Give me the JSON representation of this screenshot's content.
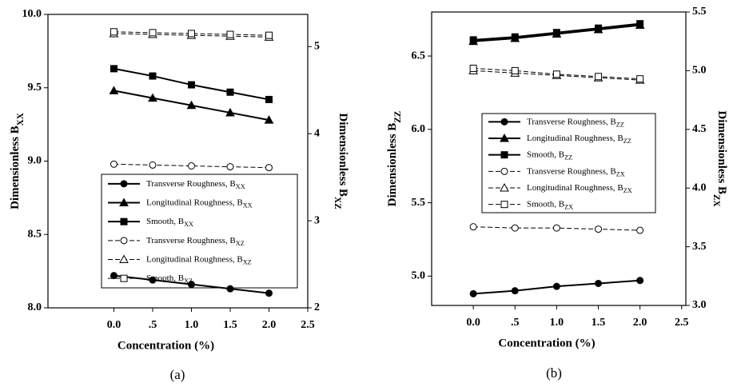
{
  "chart_data": [
    {
      "type": "line",
      "label": "(a)",
      "xlabel": "Concentration (%)",
      "ylabel": "Dimensionless BXX",
      "y2label": "Dimensionless BXZ",
      "x": [
        0,
        0.5,
        1,
        1.5,
        2
      ],
      "xlim": [
        -0.85,
        2.5
      ],
      "xticks": [
        {
          "value": 0,
          "label": "0.0"
        },
        {
          "value": 0.5,
          "label": ".5"
        },
        {
          "value": 1,
          "label": "1.0"
        },
        {
          "value": 1.5,
          "label": "1.5"
        },
        {
          "value": 2,
          "label": "2.0"
        },
        {
          "value": 2.5,
          "label": "2.5"
        }
      ],
      "ylim": [
        8,
        10
      ],
      "yticks": [
        {
          "value": 8,
          "label": "8.0"
        },
        {
          "value": 8.5,
          "label": "8.5"
        },
        {
          "value": 9,
          "label": "9.0"
        },
        {
          "value": 9.5,
          "label": "9.5"
        },
        {
          "value": 10,
          "label": "10.0"
        }
      ],
      "y2lim": [
        2,
        5.37
      ],
      "y2ticks": [
        2,
        3,
        4,
        5
      ],
      "series": [
        {
          "name": "Transverse Roughness, BXX",
          "color": "#000000",
          "marker": "circle",
          "filled": true,
          "dashed": false,
          "axis": "y",
          "values": [
            8.22,
            8.19,
            8.16,
            8.13,
            8.1
          ]
        },
        {
          "name": "Longitudinal Roughness, BXX",
          "color": "#000000",
          "marker": "triangle",
          "filled": true,
          "dashed": false,
          "axis": "y",
          "values": [
            9.48,
            9.43,
            9.38,
            9.33,
            9.28
          ]
        },
        {
          "name": "Smooth, BXX",
          "color": "#000000",
          "marker": "square",
          "filled": true,
          "dashed": false,
          "axis": "y",
          "values": [
            9.63,
            9.58,
            9.52,
            9.47,
            9.42
          ]
        },
        {
          "name": "Transverse Roughness, BXZ",
          "color": "#000000",
          "marker": "circle",
          "filled": false,
          "dashed": true,
          "axis": "y2",
          "values": [
            3.65,
            3.64,
            3.63,
            3.62,
            3.61
          ]
        },
        {
          "name": "Longitudinal Roughness, BXZ",
          "color": "#000000",
          "marker": "triangle",
          "filled": false,
          "dashed": true,
          "axis": "y2",
          "values": [
            5.15,
            5.14,
            5.13,
            5.12,
            5.11
          ]
        },
        {
          "name": "Smooth, BXZ",
          "color": "#000000",
          "marker": "square",
          "filled": false,
          "dashed": true,
          "axis": "y2",
          "values": [
            5.17,
            5.16,
            5.15,
            5.14,
            5.13
          ]
        }
      ]
    },
    {
      "type": "line",
      "label": "(b)",
      "xlabel": "Concentration (%)",
      "ylabel": "Dimensionless BZZ",
      "y2label": "Dimensionless BZX",
      "x": [
        0,
        0.5,
        1,
        1.5,
        2
      ],
      "xlim": [
        -0.5,
        2.55
      ],
      "xticks": [
        {
          "value": 0,
          "label": "0.0"
        },
        {
          "value": 0.5,
          "label": ".5"
        },
        {
          "value": 1,
          "label": "1.0"
        },
        {
          "value": 1.5,
          "label": "1.5"
        },
        {
          "value": 2,
          "label": "2.0"
        },
        {
          "value": 2.5,
          "label": "2.5"
        }
      ],
      "ylim": [
        4.8,
        6.8
      ],
      "yticks": [
        {
          "value": 5,
          "label": "5.0"
        },
        {
          "value": 5.5,
          "label": "5.5"
        },
        {
          "value": 6,
          "label": "6.0"
        },
        {
          "value": 6.5,
          "label": "6.5"
        }
      ],
      "y2lim": [
        3,
        5.5
      ],
      "y2ticks": [
        {
          "value": 3,
          "label": "3.0"
        },
        {
          "value": 3.5,
          "label": "3.5"
        },
        {
          "value": 4,
          "label": "4.0"
        },
        {
          "value": 4.5,
          "label": "4.5"
        },
        {
          "value": 5,
          "label": "5.0"
        },
        {
          "value": 5.5,
          "label": "5.5"
        }
      ],
      "series": [
        {
          "name": "Transverse Roughness, BZZ",
          "color": "#000000",
          "marker": "circle",
          "filled": true,
          "dashed": false,
          "axis": "y",
          "values": [
            4.88,
            4.9,
            4.93,
            4.95,
            4.97
          ]
        },
        {
          "name": "Longitudinal Roughness, BZZ",
          "color": "#000000",
          "marker": "triangle",
          "filled": true,
          "dashed": false,
          "axis": "y",
          "values": [
            6.6,
            6.62,
            6.65,
            6.68,
            6.71
          ]
        },
        {
          "name": "Smooth, BZZ",
          "color": "#000000",
          "marker": "square",
          "filled": true,
          "dashed": false,
          "axis": "y",
          "values": [
            6.61,
            6.63,
            6.66,
            6.69,
            6.72
          ]
        },
        {
          "name": "Transverse Roughness, BZX",
          "color": "#000000",
          "marker": "circle",
          "filled": false,
          "dashed": true,
          "axis": "y2",
          "values": [
            3.67,
            3.66,
            3.66,
            3.65,
            3.64
          ]
        },
        {
          "name": "Longitudinal Roughness, BZX",
          "color": "#000000",
          "marker": "triangle",
          "filled": false,
          "dashed": true,
          "axis": "y2",
          "values": [
            5.0,
            4.98,
            4.96,
            4.94,
            4.92
          ]
        },
        {
          "name": "Smooth, BZX",
          "color": "#000000",
          "marker": "square",
          "filled": false,
          "dashed": true,
          "axis": "y2",
          "values": [
            5.02,
            5.0,
            4.97,
            4.95,
            4.93
          ]
        }
      ]
    }
  ]
}
